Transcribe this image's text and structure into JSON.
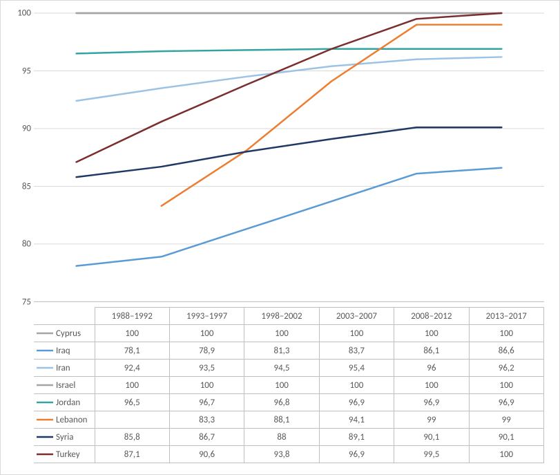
{
  "chart": {
    "type": "line",
    "background_color": "#ffffff",
    "grid_color": "#d9d9d9",
    "axis_line_color": "#bfbfbf",
    "tick_label_color": "#595959",
    "tick_fontsize": 13,
    "ylim": [
      75,
      100
    ],
    "ytick_step": 5,
    "line_width": 2.5,
    "categories": [
      "1988–1992",
      "1993–1997",
      "1998–2002",
      "2003–2007",
      "2008–2012",
      "2013–2017"
    ],
    "series": [
      {
        "name": "Cyprus",
        "color": "#a5a5a5",
        "values": [
          100,
          100,
          100,
          100,
          100,
          100
        ],
        "display": [
          "100",
          "100",
          "100",
          "100",
          "100",
          "100"
        ]
      },
      {
        "name": "Iraq",
        "color": "#5b9bd5",
        "values": [
          78.1,
          78.9,
          81.3,
          83.7,
          86.1,
          86.6
        ],
        "display": [
          "78,1",
          "78,9",
          "81,3",
          "83,7",
          "86,1",
          "86,6"
        ]
      },
      {
        "name": "Iran",
        "color": "#9cc3e6",
        "values": [
          92.4,
          93.5,
          94.5,
          95.4,
          96,
          96.2
        ],
        "display": [
          "92,4",
          "93,5",
          "94,5",
          "95,4",
          "96",
          "96,2"
        ]
      },
      {
        "name": "Israel",
        "color": "#a5a5a5",
        "values": [
          100,
          100,
          100,
          100,
          100,
          100
        ],
        "display": [
          "100",
          "100",
          "100",
          "100",
          "100",
          "100"
        ]
      },
      {
        "name": "Jordan",
        "color": "#33a3a3",
        "values": [
          96.5,
          96.7,
          96.8,
          96.9,
          96.9,
          96.9
        ],
        "display": [
          "96,5",
          "96,7",
          "96,8",
          "96,9",
          "96,9",
          "96,9"
        ]
      },
      {
        "name": "Lebanon",
        "color": "#ed7d31",
        "values": [
          null,
          83.3,
          88.1,
          94.1,
          99,
          99
        ],
        "display": [
          "",
          "83,3",
          "88,1",
          "94,1",
          "99",
          "99"
        ]
      },
      {
        "name": "Syria",
        "color": "#1f3864",
        "values": [
          85.8,
          86.7,
          88,
          89.1,
          90.1,
          90.1
        ],
        "display": [
          "85,8",
          "86,7",
          "88",
          "89,1",
          "90,1",
          "90,1"
        ]
      },
      {
        "name": "Turkey",
        "color": "#7b2e2e",
        "values": [
          87.1,
          90.6,
          93.8,
          96.9,
          99.5,
          100
        ],
        "display": [
          "87,1",
          "90,6",
          "93,8",
          "96,9",
          "99,5",
          "100"
        ]
      }
    ]
  }
}
